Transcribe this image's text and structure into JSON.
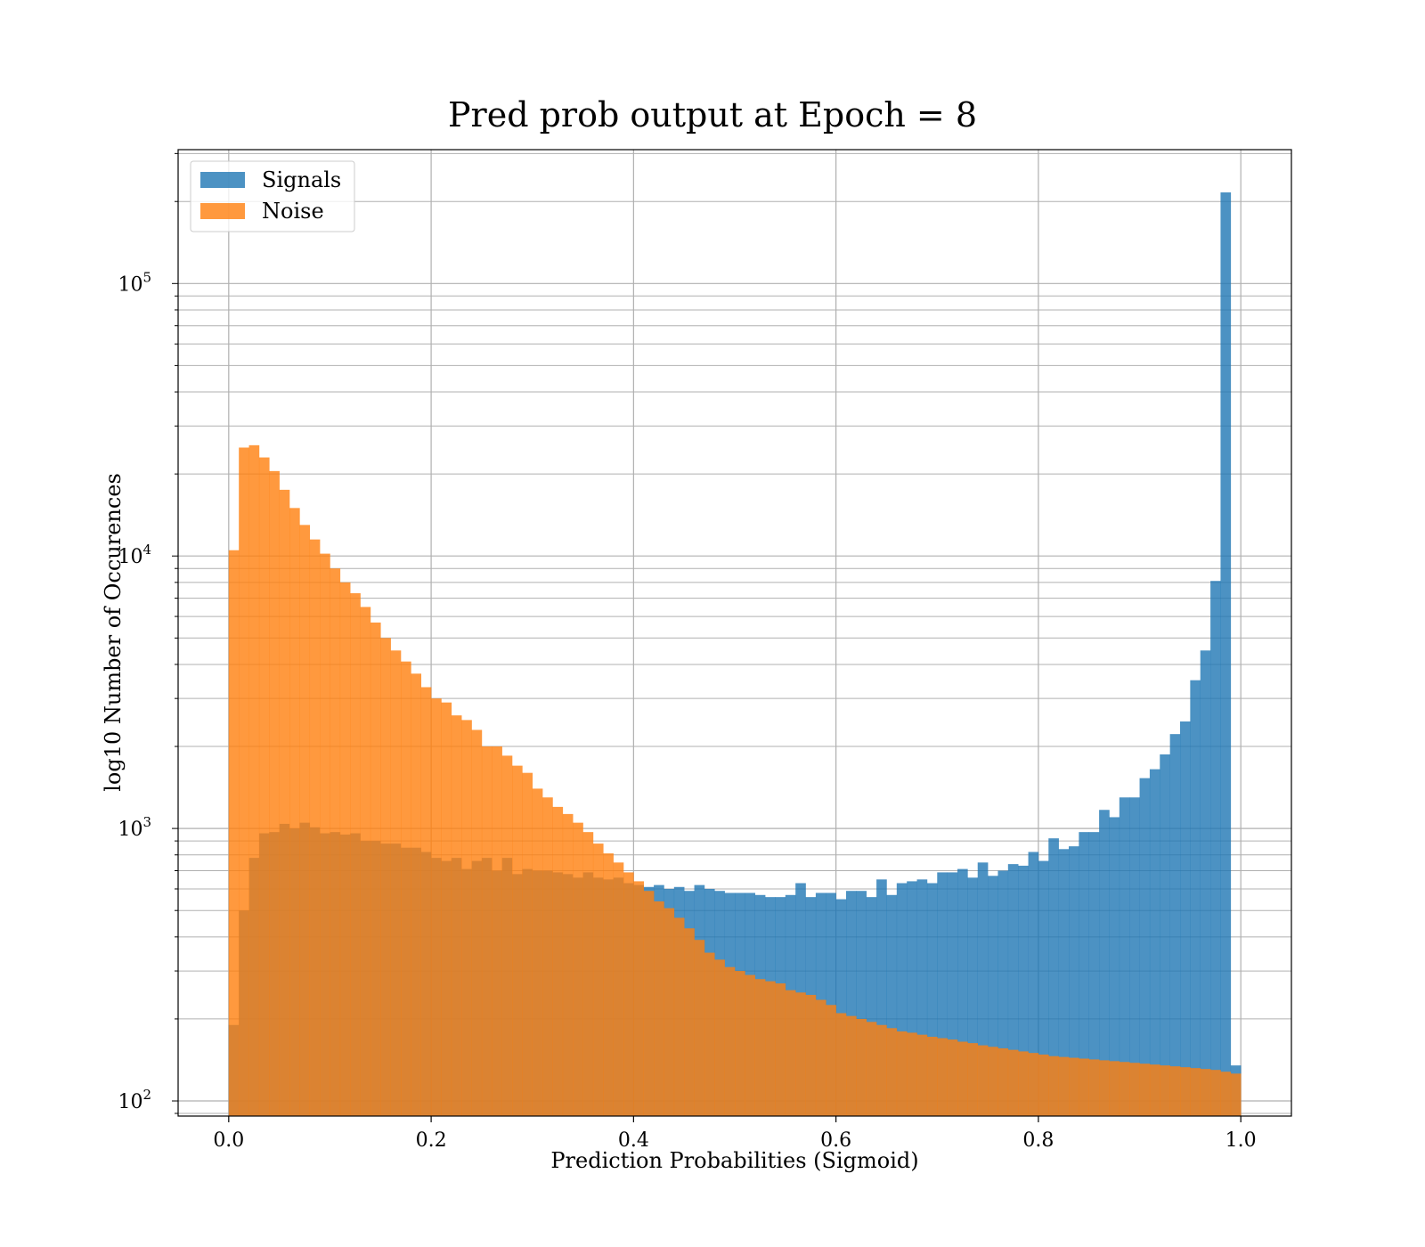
{
  "chart_data": {
    "type": "histogram",
    "title": "Pred prob output at Epoch = 8",
    "xlabel": "Prediction Probabilities (Sigmoid)",
    "ylabel": "log10 Number of Occurences",
    "xlim": [
      -0.05,
      1.05
    ],
    "ylim": [
      88,
      310000
    ],
    "yscale": "log",
    "grid": true,
    "legend_position": "upper-left",
    "bin_edges_start": 0.0,
    "bin_width": 0.01,
    "x_ticks": [
      {
        "value": 0.0,
        "label": "0.0"
      },
      {
        "value": 0.2,
        "label": "0.2"
      },
      {
        "value": 0.4,
        "label": "0.4"
      },
      {
        "value": 0.6,
        "label": "0.6"
      },
      {
        "value": 0.8,
        "label": "0.8"
      },
      {
        "value": 1.0,
        "label": "1.0"
      }
    ],
    "y_ticks": [
      {
        "value": 100,
        "base": "10",
        "exp": "2"
      },
      {
        "value": 1000,
        "base": "10",
        "exp": "3"
      },
      {
        "value": 10000,
        "base": "10",
        "exp": "4"
      },
      {
        "value": 100000,
        "base": "10",
        "exp": "5"
      }
    ],
    "series": [
      {
        "name": "Signals",
        "color": "#1f77b4",
        "opacity": 0.8,
        "values": [
          190,
          500,
          780,
          960,
          970,
          1040,
          1000,
          1050,
          1010,
          960,
          970,
          950,
          960,
          900,
          900,
          880,
          880,
          850,
          850,
          820,
          780,
          760,
          780,
          710,
          760,
          780,
          700,
          780,
          680,
          710,
          700,
          700,
          690,
          680,
          660,
          690,
          660,
          650,
          660,
          630,
          620,
          610,
          620,
          600,
          610,
          590,
          620,
          600,
          590,
          580,
          580,
          580,
          570,
          560,
          560,
          570,
          630,
          560,
          580,
          580,
          550,
          590,
          590,
          560,
          650,
          570,
          630,
          640,
          650,
          630,
          690,
          690,
          710,
          660,
          750,
          670,
          700,
          740,
          730,
          820,
          760,
          920,
          840,
          860,
          970,
          970,
          1170,
          1100,
          1300,
          1300,
          1530,
          1650,
          1870,
          2220,
          2470,
          3500,
          4500,
          8100,
          216000,
          135
        ]
      },
      {
        "name": "Noise",
        "color": "#ff7f0e",
        "opacity": 0.8,
        "values": [
          10500,
          25000,
          25500,
          23000,
          20500,
          17500,
          15000,
          13000,
          11500,
          10200,
          9000,
          8000,
          7300,
          6500,
          5700,
          5000,
          4500,
          4100,
          3700,
          3300,
          3000,
          2900,
          2600,
          2500,
          2300,
          2000,
          2000,
          1850,
          1700,
          1600,
          1400,
          1300,
          1200,
          1130,
          1050,
          970,
          880,
          810,
          750,
          690,
          640,
          590,
          540,
          510,
          470,
          430,
          390,
          350,
          330,
          310,
          300,
          290,
          280,
          275,
          270,
          255,
          250,
          245,
          235,
          225,
          210,
          205,
          200,
          195,
          190,
          185,
          180,
          178,
          175,
          172,
          170,
          168,
          165,
          163,
          160,
          158,
          156,
          154,
          152,
          150,
          148,
          146,
          145,
          144,
          143,
          142,
          141,
          140,
          139,
          138,
          137,
          136,
          135,
          134,
          133,
          132,
          131,
          130,
          128,
          126
        ]
      }
    ]
  }
}
